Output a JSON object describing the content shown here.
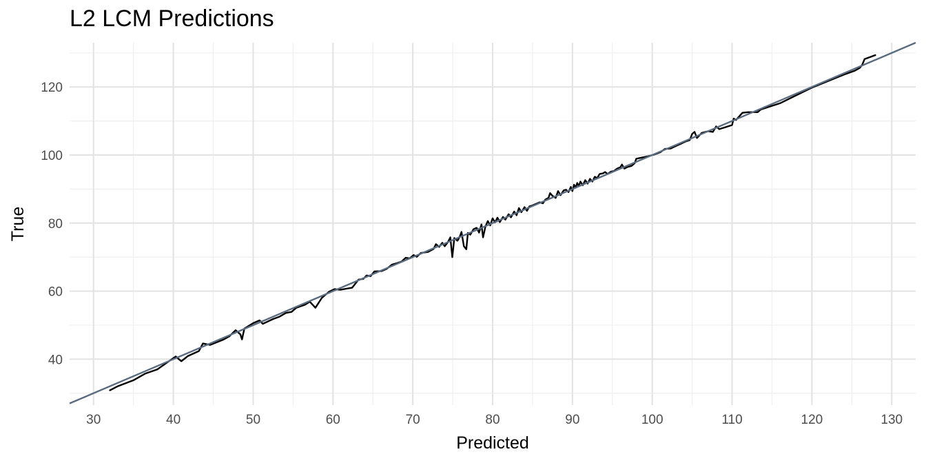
{
  "chart_data": {
    "type": "line",
    "title": "L2 LCM Predictions",
    "xlabel": "Predicted",
    "ylabel": "True",
    "xlim": [
      27,
      133
    ],
    "ylim": [
      26.5,
      133
    ],
    "x_ticks": [
      30,
      40,
      50,
      60,
      70,
      80,
      90,
      100,
      110,
      120,
      130
    ],
    "y_ticks": [
      40,
      60,
      80,
      100,
      120
    ],
    "grid": true,
    "legend": "none",
    "colors": {
      "series": "#000000",
      "reference": "#5a6b80",
      "grid_major": "#e4e4e4",
      "grid_minor": "#efefef"
    },
    "series": [
      {
        "points": [
          [
            32.0,
            30.8
          ],
          [
            33.0,
            32.0
          ],
          [
            35.0,
            33.8
          ],
          [
            36.5,
            35.8
          ],
          [
            38.0,
            37.0
          ],
          [
            39.5,
            39.5
          ],
          [
            40.3,
            40.8
          ],
          [
            41.0,
            39.4
          ],
          [
            41.8,
            40.9
          ],
          [
            43.2,
            42.4
          ],
          [
            43.7,
            44.6
          ],
          [
            44.6,
            44.2
          ],
          [
            46.3,
            45.8
          ],
          [
            47.0,
            46.7
          ],
          [
            47.8,
            48.5
          ],
          [
            48.4,
            47.3
          ],
          [
            48.6,
            45.8
          ],
          [
            48.9,
            49.0
          ],
          [
            50.0,
            50.6
          ],
          [
            50.8,
            51.4
          ],
          [
            51.2,
            50.4
          ],
          [
            52.5,
            51.8
          ],
          [
            53.3,
            52.5
          ],
          [
            54.1,
            53.6
          ],
          [
            54.8,
            53.9
          ],
          [
            55.4,
            55.1
          ],
          [
            56.5,
            56.0
          ],
          [
            57.1,
            56.9
          ],
          [
            57.8,
            55.1
          ],
          [
            58.6,
            58.0
          ],
          [
            59.5,
            59.8
          ],
          [
            60.2,
            60.6
          ],
          [
            60.9,
            60.4
          ],
          [
            62.4,
            61.0
          ],
          [
            63.2,
            63.4
          ],
          [
            63.8,
            63.6
          ],
          [
            64.2,
            64.6
          ],
          [
            64.7,
            64.4
          ],
          [
            65.2,
            65.8
          ],
          [
            66.1,
            65.9
          ],
          [
            66.7,
            66.5
          ],
          [
            67.4,
            67.8
          ],
          [
            68.0,
            68.2
          ],
          [
            68.6,
            68.7
          ],
          [
            69.1,
            69.8
          ],
          [
            69.6,
            69.6
          ],
          [
            70.1,
            70.6
          ],
          [
            70.5,
            70.1
          ],
          [
            71.0,
            71.2
          ],
          [
            71.9,
            71.5
          ],
          [
            72.6,
            72.4
          ],
          [
            72.9,
            73.8
          ],
          [
            73.3,
            73.0
          ],
          [
            73.7,
            74.2
          ],
          [
            74.0,
            73.2
          ],
          [
            74.4,
            74.4
          ],
          [
            74.7,
            75.8
          ],
          [
            74.95,
            70.0
          ],
          [
            75.2,
            75.6
          ],
          [
            75.6,
            74.8
          ],
          [
            75.9,
            76.1
          ],
          [
            76.1,
            77.4
          ],
          [
            76.4,
            73.2
          ],
          [
            76.7,
            72.3
          ],
          [
            76.9,
            77.1
          ],
          [
            77.2,
            76.6
          ],
          [
            77.6,
            78.2
          ],
          [
            78.0,
            78.6
          ],
          [
            78.3,
            77.2
          ],
          [
            78.6,
            79.6
          ],
          [
            78.8,
            75.8
          ],
          [
            79.1,
            79.0
          ],
          [
            79.4,
            80.6
          ],
          [
            79.7,
            79.3
          ],
          [
            80.0,
            81.4
          ],
          [
            80.3,
            80.2
          ],
          [
            80.6,
            81.6
          ],
          [
            80.9,
            80.3
          ],
          [
            81.3,
            81.8
          ],
          [
            81.6,
            81.0
          ],
          [
            82.0,
            82.6
          ],
          [
            82.3,
            81.7
          ],
          [
            82.7,
            83.4
          ],
          [
            83.0,
            82.3
          ],
          [
            83.3,
            84.4
          ],
          [
            83.6,
            83.2
          ],
          [
            84.0,
            84.7
          ],
          [
            84.3,
            83.6
          ],
          [
            84.6,
            84.9
          ],
          [
            85.0,
            85.2
          ],
          [
            85.5,
            85.7
          ],
          [
            85.9,
            86.1
          ],
          [
            86.3,
            85.8
          ],
          [
            86.6,
            86.9
          ],
          [
            87.0,
            87.4
          ],
          [
            87.2,
            88.8
          ],
          [
            87.5,
            88.0
          ],
          [
            87.9,
            87.4
          ],
          [
            88.2,
            89.4
          ],
          [
            88.5,
            88.2
          ],
          [
            88.9,
            89.6
          ],
          [
            89.2,
            89.8
          ],
          [
            89.5,
            89.1
          ],
          [
            89.8,
            90.6
          ],
          [
            90.0,
            89.4
          ],
          [
            90.2,
            91.3
          ],
          [
            90.4,
            90.4
          ],
          [
            90.6,
            91.8
          ],
          [
            90.8,
            90.8
          ],
          [
            91.0,
            92.2
          ],
          [
            91.3,
            91.1
          ],
          [
            91.6,
            92.6
          ],
          [
            91.9,
            91.6
          ],
          [
            92.2,
            93.0
          ],
          [
            92.5,
            92.2
          ],
          [
            92.8,
            93.6
          ],
          [
            93.1,
            93.2
          ],
          [
            93.4,
            94.4
          ],
          [
            93.8,
            94.6
          ],
          [
            94.1,
            95.0
          ],
          [
            94.4,
            94.4
          ],
          [
            94.8,
            95.1
          ],
          [
            95.2,
            95.3
          ],
          [
            95.6,
            96.0
          ],
          [
            96.0,
            96.4
          ],
          [
            96.2,
            97.2
          ],
          [
            96.5,
            96.0
          ],
          [
            96.9,
            96.5
          ],
          [
            97.4,
            96.8
          ],
          [
            97.8,
            97.6
          ],
          [
            98.0,
            98.9
          ],
          [
            98.6,
            99.2
          ],
          [
            99.4,
            99.6
          ],
          [
            100.2,
            100.1
          ],
          [
            101.0,
            100.8
          ],
          [
            101.6,
            101.8
          ],
          [
            102.3,
            101.9
          ],
          [
            103.0,
            102.7
          ],
          [
            103.5,
            103.2
          ],
          [
            104.2,
            104.0
          ],
          [
            104.7,
            104.4
          ],
          [
            105.0,
            106.2
          ],
          [
            105.3,
            106.8
          ],
          [
            105.6,
            105.0
          ],
          [
            106.2,
            106.5
          ],
          [
            107.0,
            107.0
          ],
          [
            107.6,
            106.8
          ],
          [
            108.0,
            108.4
          ],
          [
            108.4,
            107.6
          ],
          [
            109.2,
            108.2
          ],
          [
            110.0,
            108.8
          ],
          [
            110.2,
            110.7
          ],
          [
            110.5,
            110.3
          ],
          [
            111.3,
            112.4
          ],
          [
            112.0,
            112.6
          ],
          [
            113.2,
            112.6
          ],
          [
            113.6,
            113.4
          ],
          [
            116.0,
            115.2
          ],
          [
            120.0,
            119.8
          ],
          [
            124.0,
            123.6
          ],
          [
            125.4,
            124.8
          ],
          [
            126.0,
            125.6
          ],
          [
            126.3,
            126.5
          ],
          [
            126.6,
            128.2
          ],
          [
            128.0,
            129.4
          ]
        ]
      }
    ],
    "reference_line": {
      "slope": 1,
      "intercept": 0
    }
  }
}
